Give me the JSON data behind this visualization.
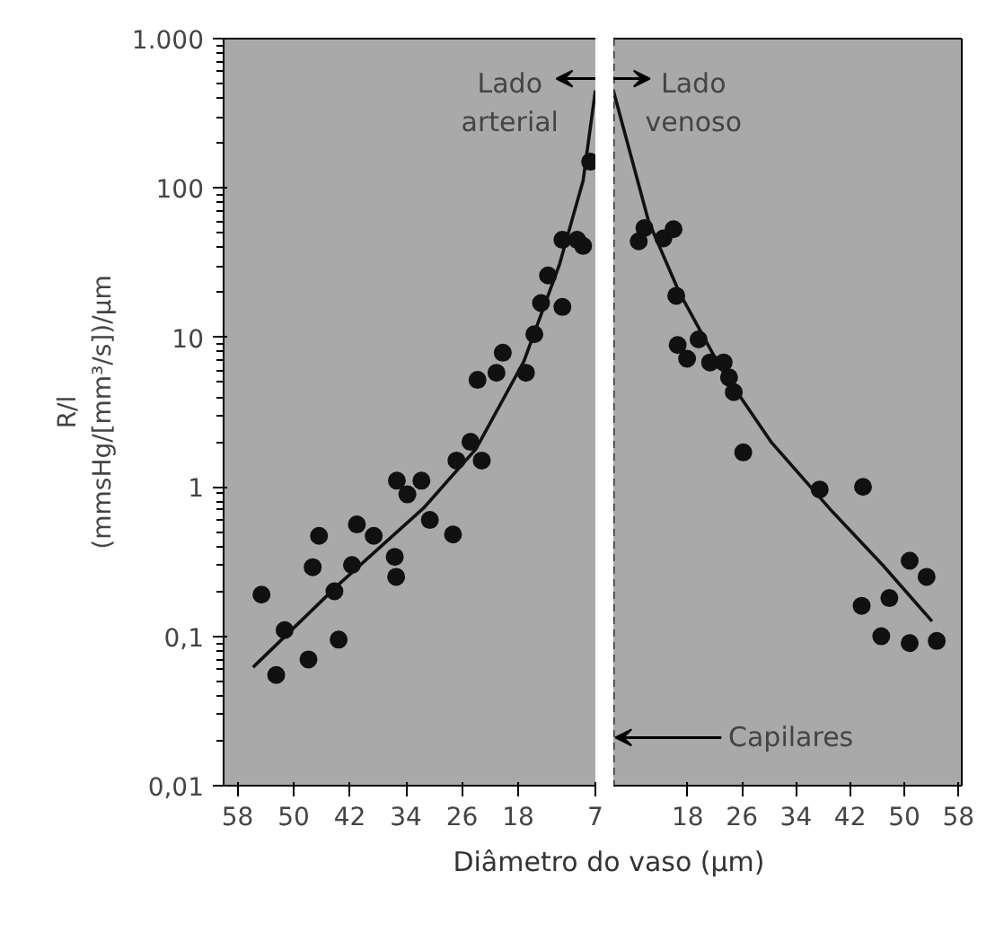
{
  "chart_data": [
    {
      "type": "scatter",
      "xlabel": "Diâmetro do vaso (µm)",
      "ylabel": "R/l\n(mmsHg/[mm³/s])/µm",
      "log": "y",
      "grid": false,
      "marker": "circle",
      "xlim": [
        60,
        7
      ],
      "ylim": [
        0.01,
        1000
      ],
      "xticks": [
        58,
        50,
        42,
        34,
        26,
        18,
        7
      ],
      "yticks": [
        {
          "value": 0.01,
          "label": "0,01"
        },
        {
          "value": 0.1,
          "label": "0,1"
        },
        {
          "value": 1,
          "label": "1"
        },
        {
          "value": 10,
          "label": "10"
        },
        {
          "value": 100,
          "label": "100"
        },
        {
          "value": 1000,
          "label": "1.000"
        }
      ],
      "annotations": [
        "Lado\narterial"
      ],
      "series": [
        {
          "color": "#111111",
          "x": [
            54.6,
            52.5,
            51.3,
            47.9,
            47.3,
            46.4,
            44.2,
            43.6,
            41.7,
            41,
            38.6,
            35.6,
            35.4,
            35.3,
            33.8,
            31.8,
            30.6,
            27.3,
            26.8,
            24.8,
            23.8,
            23.2,
            21.1,
            20.2,
            16.9,
            15.7,
            14.75,
            13.75,
            11.7,
            11.7,
            9.6,
            8.75,
            7.75
          ],
          "values": [
            0.19,
            0.055,
            0.11,
            0.07,
            0.29,
            0.47,
            0.2,
            0.095,
            0.3,
            0.56,
            0.47,
            0.34,
            0.25,
            1.1,
            0.89,
            1.1,
            0.6,
            0.48,
            1.5,
            2,
            5.2,
            1.5,
            5.8,
            7.9,
            5.8,
            10.5,
            17,
            26,
            16,
            45,
            45,
            41,
            150
          ]
        },
        {
          "type": "line",
          "color": "#111111",
          "marker": "none",
          "x": [
            55.8,
            43.7,
            31.5,
            24,
            17.2,
            12.1,
            8.75,
            7
          ],
          "values": [
            0.062,
            0.22,
            0.72,
            1.8,
            6.9,
            31,
            112,
            450
          ]
        }
      ]
    },
    {
      "type": "scatter",
      "log": "y",
      "grid": false,
      "marker": "circle",
      "tick_labels": "x",
      "xlim": [
        7,
        58.5
      ],
      "ylim": [
        0.01,
        1000
      ],
      "xticks": [
        18,
        26,
        34,
        42,
        50,
        58
      ],
      "ref_lines": [
        {
          "axis": "x",
          "value": 7,
          "line_style": "dashed",
          "color": "#333333"
        }
      ],
      "annotations": [
        "Lado\nvenoso",
        {
          "text": "Capilares",
          "x": 7,
          "y": 0.021
        }
      ],
      "series": [
        {
          "color": "#111111",
          "x": [
            10.75,
            11.6,
            14.4,
            15.9,
            16.3,
            16.5,
            17.9,
            19.6,
            21.3,
            23.3,
            24.1,
            24.8,
            26.2,
            37.5,
            43.9,
            50.8,
            53.3,
            47.8,
            43.7,
            46.6,
            50.8,
            54.8
          ],
          "values": [
            44,
            54,
            46,
            53,
            19,
            8.9,
            7.2,
            9.7,
            6.8,
            6.8,
            5.4,
            4.3,
            1.7,
            0.96,
            1,
            0.32,
            0.25,
            0.18,
            0.16,
            0.1,
            0.09,
            0.093
          ]
        },
        {
          "type": "line",
          "color": "#111111",
          "marker": "none",
          "x": [
            7,
            12.2,
            16.75,
            22.9,
            30.3,
            39.4,
            46.8,
            54.1
          ],
          "values": [
            450,
            60,
            20,
            6.2,
            2,
            0.68,
            0.3,
            0.126
          ]
        }
      ]
    }
  ]
}
